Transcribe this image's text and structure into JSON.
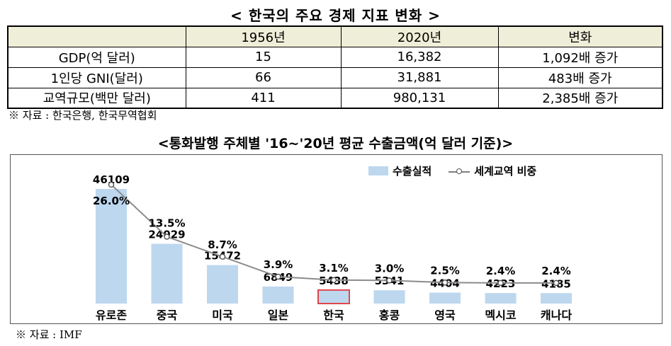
{
  "table_title": "< 한국의 주요 경제 지표 변화 >",
  "table": {
    "headers": [
      "",
      "1956년",
      "2020년",
      "변화"
    ],
    "rows": [
      [
        "GDP(억 달러)",
        "15",
        "16,382",
        "1,092배 증가"
      ],
      [
        "1인당 GNI(달러)",
        "66",
        "31,881",
        "483배 증가"
      ],
      [
        "교역규모(백만 달러)",
        "411",
        "980,131",
        "2,385배 증가"
      ]
    ]
  },
  "table_source": "※ 자료 : 한국은행, 한국무역협회",
  "chart_source": "※ 자료 : IMF",
  "colors": {
    "bar": "#bdd7ee",
    "highlight_border": "#e0464b",
    "line": "#8c8c8c",
    "header_bg": "#efeed8"
  },
  "chart_data": {
    "type": "bar",
    "title": "<통화발행 주체별 '16~'20년 평균 수출금액(억 달러 기준)>",
    "categories": [
      "유로존",
      "중국",
      "미국",
      "일본",
      "한국",
      "홍콩",
      "영국",
      "멕시코",
      "캐나다"
    ],
    "series": [
      {
        "name": "수출실적",
        "type": "bar",
        "values": [
          46109,
          24029,
          15472,
          6849,
          5438,
          5341,
          4404,
          4223,
          4185
        ]
      },
      {
        "name": "세계교역 비중",
        "type": "line",
        "values": [
          26.0,
          13.5,
          8.7,
          3.9,
          3.1,
          3.0,
          2.5,
          2.4,
          2.4
        ],
        "labels": [
          "26.0%",
          "13.5%",
          "8.7%",
          "3.9%",
          "3.1%",
          "3.0%",
          "2.5%",
          "2.4%",
          "2.4%"
        ]
      }
    ],
    "highlight": "한국",
    "legend": "top-right",
    "grid": false
  }
}
